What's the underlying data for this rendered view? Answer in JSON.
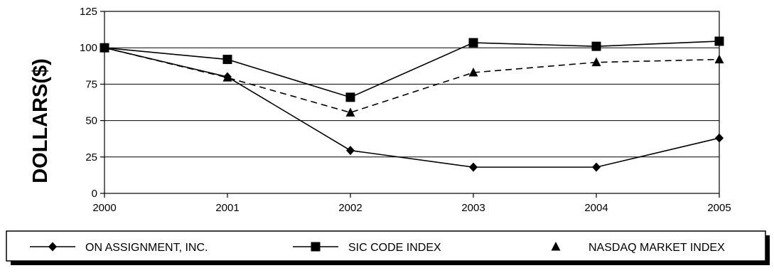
{
  "chart_data": {
    "type": "line",
    "title": "",
    "xlabel": "",
    "ylabel": "DOLLARS($)",
    "x": [
      "2000",
      "2001",
      "2002",
      "2003",
      "2004",
      "2005"
    ],
    "ylim": [
      0,
      125
    ],
    "yticks": [
      "0",
      "25",
      "50",
      "75",
      "100",
      "125"
    ],
    "grid": true,
    "legend_position": "bottom",
    "series": [
      {
        "name": "ON ASSIGNMENT, INC.",
        "values": [
          100,
          80,
          29.5,
          18,
          18,
          38
        ],
        "marker": "diamond",
        "line": "solid"
      },
      {
        "name": "SIC CODE INDEX",
        "values": [
          100,
          92,
          66,
          103.5,
          101,
          104.5
        ],
        "marker": "square",
        "line": "solid"
      },
      {
        "name": "NASDAQ MARKET INDEX",
        "values": [
          100,
          79.5,
          55.5,
          83,
          90,
          92
        ],
        "marker": "triangle",
        "line": "dashed"
      }
    ]
  }
}
